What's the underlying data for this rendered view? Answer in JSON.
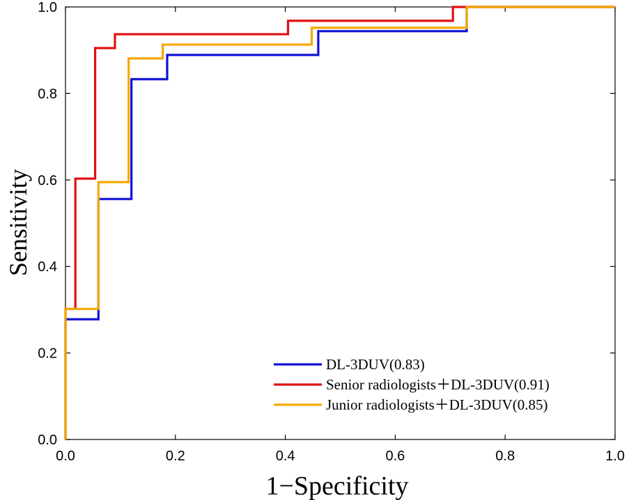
{
  "chart_data": {
    "type": "line",
    "title": "",
    "xlabel": "1−Specificity",
    "ylabel": "Sensitivity",
    "xlim": [
      0,
      1
    ],
    "ylim": [
      0,
      1
    ],
    "x_ticks": [
      "0.0",
      "0.2",
      "0.4",
      "0.6",
      "0.8",
      "1.0"
    ],
    "y_ticks": [
      "0.0",
      "0.2",
      "0.4",
      "0.6",
      "0.8",
      "1.0"
    ],
    "grid": false,
    "legend_position": "bottom-right",
    "series": [
      {
        "name": "DL-3DUV(0.83)",
        "color": "#1010d8",
        "x": [
          0,
          0,
          0.06,
          0.06,
          0.12,
          0.12,
          0.185,
          0.185,
          0.46,
          0.46,
          0.73,
          0.73,
          1.0
        ],
        "y": [
          0,
          0.278,
          0.278,
          0.556,
          0.556,
          0.833,
          0.833,
          0.889,
          0.889,
          0.944,
          0.944,
          1.0,
          1.0
        ]
      },
      {
        "name": "Senior radiologists＋DL-3DUV(0.91)",
        "color": "#e01010",
        "x": [
          0,
          0,
          0.018,
          0.018,
          0.054,
          0.054,
          0.09,
          0.09,
          0.405,
          0.405,
          0.705,
          0.705,
          1.0
        ],
        "y": [
          0,
          0.302,
          0.302,
          0.603,
          0.603,
          0.905,
          0.905,
          0.937,
          0.937,
          0.968,
          0.968,
          1.0,
          1.0
        ]
      },
      {
        "name": "Junior radiologists＋DL-3DUV(0.85)",
        "color": "#f5a800",
        "x": [
          0,
          0,
          0.06,
          0.06,
          0.115,
          0.115,
          0.177,
          0.177,
          0.448,
          0.448,
          0.73,
          0.73,
          1.0
        ],
        "y": [
          0,
          0.302,
          0.302,
          0.595,
          0.595,
          0.881,
          0.881,
          0.913,
          0.913,
          0.952,
          0.952,
          1.0,
          1.0
        ]
      }
    ]
  }
}
